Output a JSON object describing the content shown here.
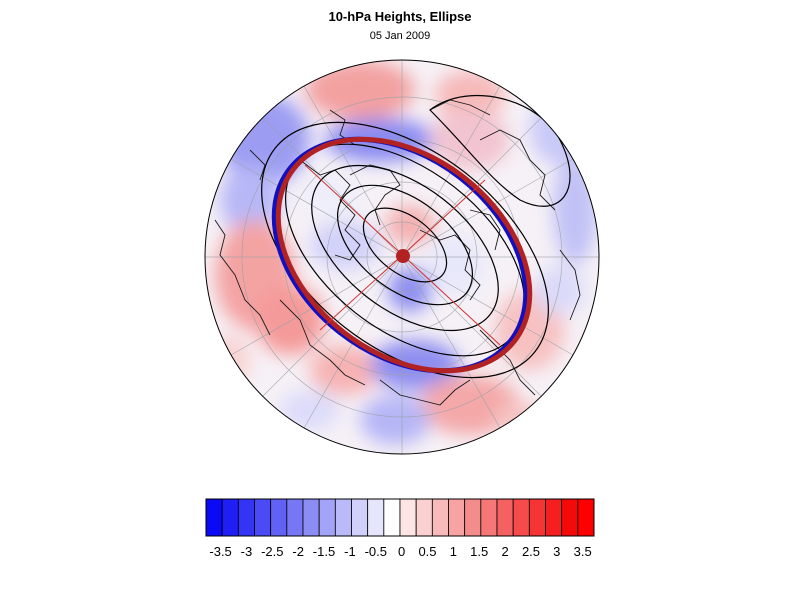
{
  "figure": {
    "title": "10-hPa Heights, Ellipse",
    "date": "05 Jan 2009"
  },
  "map": {
    "projection": "north polar stereographic (circular)",
    "center_marker_color": "#b22222",
    "ellipse_outer_color": "#b22222",
    "ellipse_inner_color": "#1010c0",
    "contour_color": "#000000",
    "grid_color": "#9aa0a6"
  },
  "colorbar": {
    "tick_labels": [
      "-3.5",
      "-3",
      "-2.5",
      "-2",
      "-1.5",
      "-1",
      "-0.5",
      "0",
      "0.5",
      "1",
      "1.5",
      "2",
      "2.5",
      "3",
      "3.5"
    ],
    "colors": [
      "#0a0af5",
      "#1f1ff5",
      "#3434f5",
      "#4b4bf5",
      "#6161f5",
      "#7777f5",
      "#8c8cf5",
      "#a3a3f7",
      "#babaf8",
      "#d0d0fa",
      "#e5e5fc",
      "#ffffff",
      "#fde5e5",
      "#fad0d0",
      "#f8baba",
      "#f7a3a3",
      "#f58c8c",
      "#f57777",
      "#f56161",
      "#f54b4b",
      "#f53434",
      "#f51f1f",
      "#f50a0a",
      "#ff0000"
    ]
  }
}
